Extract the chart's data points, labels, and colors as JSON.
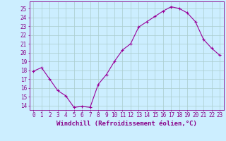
{
  "x": [
    0,
    1,
    2,
    3,
    4,
    5,
    6,
    7,
    8,
    9,
    10,
    11,
    12,
    13,
    14,
    15,
    16,
    17,
    18,
    19,
    20,
    21,
    22,
    23
  ],
  "y": [
    17.9,
    18.3,
    17.0,
    15.7,
    15.1,
    13.8,
    13.9,
    13.8,
    16.4,
    17.5,
    19.0,
    20.3,
    21.0,
    22.9,
    23.5,
    24.1,
    24.7,
    25.2,
    25.0,
    24.5,
    23.5,
    21.5,
    20.5,
    19.7
  ],
  "line_color": "#990099",
  "marker": "+",
  "marker_size": 3,
  "bg_color": "#cceeff",
  "grid_color": "#aacccc",
  "xlabel": "Windchill (Refroidissement éolien,°C)",
  "ylabel_ticks": [
    14,
    15,
    16,
    17,
    18,
    19,
    20,
    21,
    22,
    23,
    24,
    25
  ],
  "ylim": [
    13.5,
    25.8
  ],
  "xlim": [
    -0.5,
    23.5
  ],
  "xlabel_fontsize": 6.5,
  "tick_fontsize": 5.5,
  "axis_label_color": "#880088",
  "tick_color": "#880088",
  "line_width": 0.8
}
